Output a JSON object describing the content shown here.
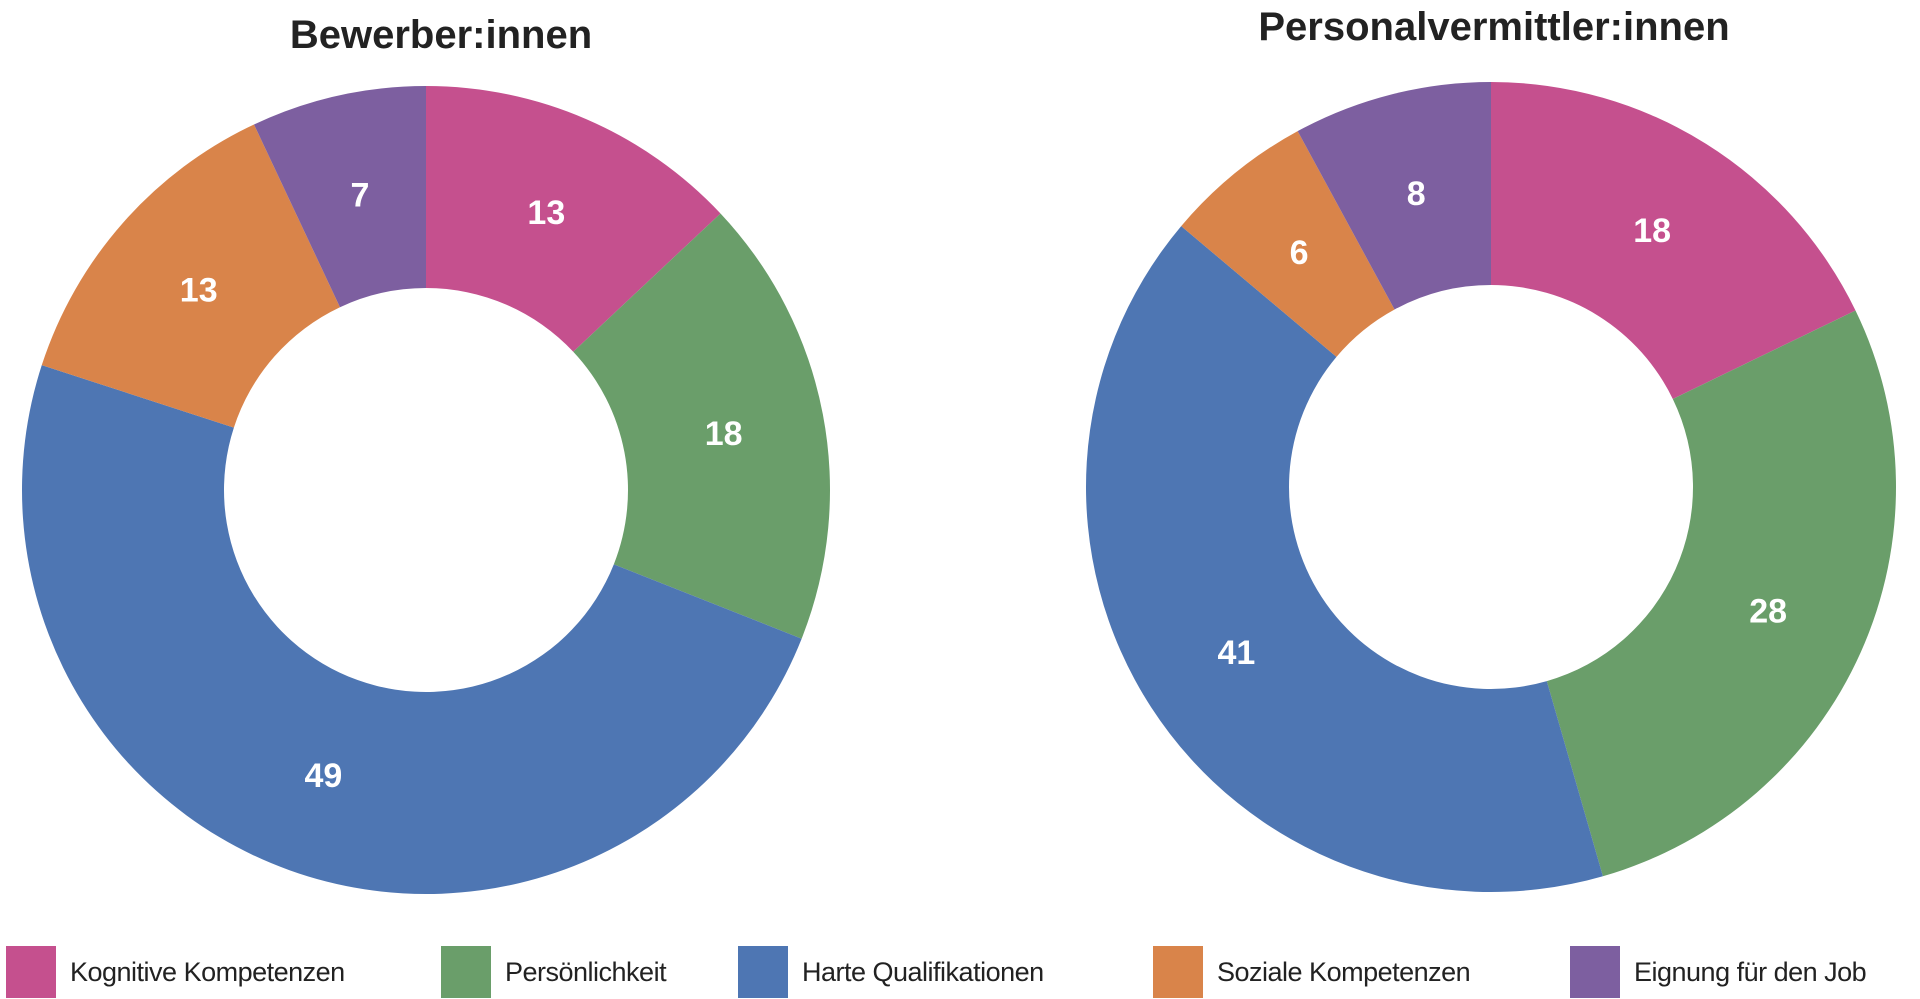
{
  "chart_data": [
    {
      "type": "pie",
      "title": "Bewerber:innen",
      "categories": [
        "Kognitive Kompetenzen",
        "Persönlichkeit",
        "Harte Qualifikationen",
        "Soziale Kompetenzen",
        "Eignung für den Job"
      ],
      "values": [
        13,
        18,
        49,
        13,
        7
      ],
      "labels": [
        "13",
        "18",
        "49",
        "13",
        "7"
      ]
    },
    {
      "type": "pie",
      "title": "Personalvermittler:innen",
      "categories": [
        "Kognitive Kompetenzen",
        "Persönlichkeit",
        "Harte Qualifikationen",
        "Soziale Kompetenzen",
        "Eignung für den Job"
      ],
      "values": [
        18,
        28,
        41,
        6,
        8
      ],
      "labels": [
        "18",
        "28",
        "41",
        "6",
        "8"
      ]
    }
  ],
  "legend": [
    {
      "label": "Kognitive Kompetenzen",
      "color": "#c5508e"
    },
    {
      "label": "Persönlichkeit",
      "color": "#6a9e6a"
    },
    {
      "label": "Harte Qualifikationen",
      "color": "#4e76b3"
    },
    {
      "label": "Soziale Kompetenzen",
      "color": "#d9844a"
    },
    {
      "label": "Eignung für den Job",
      "color": "#7d5fa0"
    }
  ]
}
